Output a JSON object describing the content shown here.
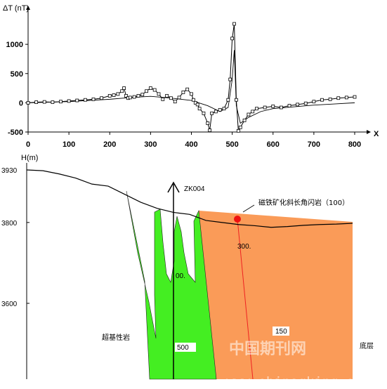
{
  "chart_data": [
    {
      "type": "line",
      "ylabel": "ΔT (nT)",
      "xlabel": "X",
      "xlim": [
        0,
        800
      ],
      "ylim": [
        -500,
        1400
      ],
      "x_ticks": [
        0,
        100,
        200,
        300,
        400,
        500,
        600,
        700,
        800
      ],
      "y_ticks": [
        -500,
        0,
        500,
        1000
      ],
      "series": [
        {
          "style": "measured-with-square-markers",
          "x": [
            0,
            20,
            40,
            60,
            80,
            100,
            120,
            140,
            160,
            180,
            200,
            210,
            220,
            230,
            235,
            240,
            245,
            250,
            260,
            270,
            280,
            290,
            300,
            310,
            320,
            330,
            340,
            350,
            360,
            370,
            380,
            390,
            400,
            405,
            410,
            415,
            420,
            430,
            440,
            445,
            450,
            460,
            470,
            480,
            490,
            495,
            500,
            505,
            510,
            515,
            520,
            530,
            540,
            550,
            560,
            580,
            600,
            620,
            640,
            660,
            680,
            700,
            720,
            740,
            760,
            780,
            800
          ],
          "y": [
            0,
            10,
            15,
            10,
            20,
            30,
            40,
            50,
            60,
            80,
            120,
            130,
            150,
            200,
            250,
            120,
            80,
            90,
            100,
            120,
            140,
            200,
            250,
            220,
            150,
            60,
            120,
            80,
            20,
            90,
            180,
            230,
            150,
            50,
            0,
            -30,
            -100,
            -180,
            -350,
            -470,
            -180,
            -150,
            -120,
            -100,
            50,
            400,
            1100,
            1350,
            50,
            -480,
            -420,
            -300,
            -200,
            -150,
            -100,
            -80,
            -60,
            -80,
            -50,
            -30,
            -10,
            20,
            50,
            60,
            80,
            90,
            100
          ]
        },
        {
          "style": "smooth-model-curve",
          "x": [
            0,
            100,
            200,
            250,
            300,
            350,
            400,
            440,
            470,
            490,
            500,
            505,
            510,
            520,
            540,
            570,
            600,
            650,
            700,
            750,
            800
          ],
          "y": [
            0,
            20,
            60,
            90,
            110,
            80,
            40,
            -50,
            -150,
            -80,
            400,
            900,
            -50,
            -350,
            -250,
            -150,
            -100,
            -70,
            -40,
            -20,
            0
          ]
        }
      ]
    },
    {
      "type": "area",
      "ylabel": "H(m)",
      "y_ticks": [
        3930,
        3800,
        3600
      ],
      "ylim": [
        3440,
        3940
      ],
      "surface": {
        "x": [
          0,
          40,
          80,
          120,
          160,
          200,
          240,
          280,
          320,
          360,
          400,
          440,
          480,
          520,
          560,
          600,
          640,
          680,
          720,
          760,
          800
        ],
        "y": [
          3930,
          3928,
          3920,
          3910,
          3895,
          3890,
          3870,
          3850,
          3835,
          3825,
          3820,
          3805,
          3800,
          3795,
          3792,
          3788,
          3790,
          3793,
          3795,
          3796,
          3798
        ]
      },
      "labels": {
        "borehole": "ZK004",
        "orebody": "磁铁矿化斜长角闪岩（100）",
        "ultrabasic": "超基性岩",
        "basement": "底层"
      },
      "depth_labels": [
        "300.",
        "00.",
        "500",
        "150"
      ],
      "colors": {
        "ultrabasic": "#44ee22",
        "basement": "#fa9b58",
        "orebody": "#ee1111",
        "surface": "#000000"
      }
    }
  ],
  "watermark": {
    "chinese": "中国期刊网",
    "url": "www.chinaqking.com"
  }
}
